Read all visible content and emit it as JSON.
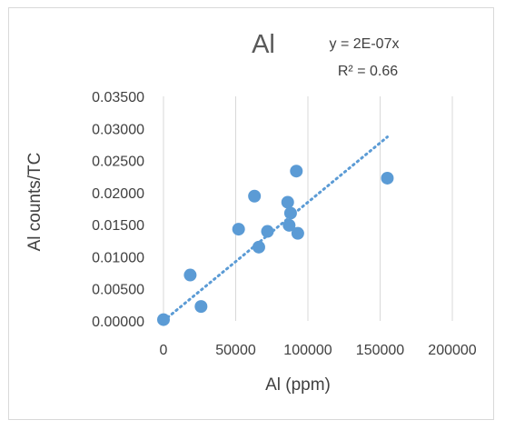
{
  "chart_data": {
    "type": "scatter",
    "title": "Al",
    "xlabel": "Al (ppm)",
    "ylabel": "Al counts/TC",
    "xlim": [
      0,
      200000
    ],
    "ylim": [
      0,
      0.035
    ],
    "x_ticks": [
      0,
      50000,
      100000,
      150000,
      200000
    ],
    "x_tick_labels": [
      "0",
      "50000",
      "100000",
      "150000",
      "200000"
    ],
    "y_ticks": [
      0,
      0.005,
      0.01,
      0.015,
      0.02,
      0.025,
      0.03,
      0.035
    ],
    "y_tick_labels": [
      "0.00000",
      "0.00500",
      "0.01000",
      "0.01500",
      "0.02000",
      "0.02500",
      "0.03000",
      "0.03500"
    ],
    "grid": "vertical",
    "legend": "none",
    "trendline": {
      "type": "linear",
      "slope": 1.85e-07,
      "x_range": [
        0,
        155000
      ],
      "equation": "y = 2E-07x",
      "r_squared": "R² = 0.66"
    },
    "series": [
      {
        "x": [
          0,
          18500,
          26000,
          52000,
          63000,
          66000,
          72000,
          86000,
          87000,
          88000,
          92000,
          93000,
          155000
        ],
        "y": [
          0.0002,
          0.00715,
          0.00225,
          0.0143,
          0.01945,
          0.0115,
          0.01395,
          0.0185,
          0.0149,
          0.0168,
          0.02335,
          0.01365,
          0.02225
        ],
        "color": "#5b9bd5"
      }
    ]
  }
}
